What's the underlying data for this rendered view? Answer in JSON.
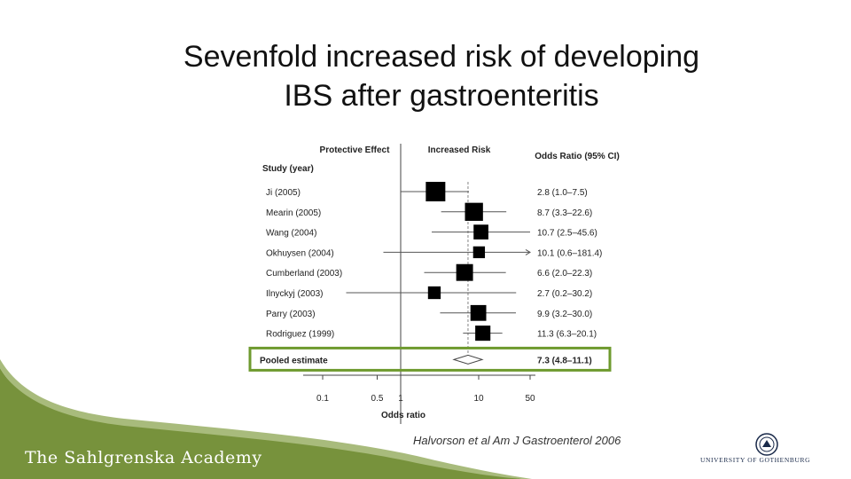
{
  "slide": {
    "title_line1": "Sevenfold increased risk of developing",
    "title_line2": "IBS after gastroenteritis",
    "citation": "Halvorson et al Am J Gastroenterol 2006",
    "academy": "The Sahlgrenska Academy",
    "university": "UNIVERSITY OF GOTHENBURG",
    "colors": {
      "green": "#77923c",
      "highlight": "#6e9a2e",
      "text": "#111111"
    }
  },
  "chart_data": {
    "type": "forest",
    "header_left": "Protective Effect",
    "header_mid": "Increased Risk",
    "header_right": "Odds Ratio (95% CI)",
    "study_header": "Study (year)",
    "xlabel": "Odds ratio",
    "xticks": [
      0.1,
      0.5,
      1,
      10,
      50
    ],
    "xtick_labels": [
      "0.1",
      "0.5",
      "1",
      "10",
      "50"
    ],
    "xlim": [
      0.05,
      60
    ],
    "reference_line": 1,
    "studies": [
      {
        "name": "Ji (2005)",
        "or": 2.8,
        "lo": 1.0,
        "hi": 7.5,
        "label": "2.8 (1.0–7.5)",
        "weight": 1.0
      },
      {
        "name": "Mearin (2005)",
        "or": 8.7,
        "lo": 3.3,
        "hi": 22.6,
        "label": "8.7 (3.3–22.6)",
        "weight": 0.88
      },
      {
        "name": "Wang (2004)",
        "or": 10.7,
        "lo": 2.5,
        "hi": 45.6,
        "label": "10.7 (2.5–45.6)",
        "weight": 0.62
      },
      {
        "name": "Okhuysen (2004)",
        "or": 10.1,
        "lo": 0.6,
        "hi": 181.4,
        "label": "10.1 (0.6–181.4)",
        "weight": 0.38
      },
      {
        "name": "Cumberland (2003)",
        "or": 6.6,
        "lo": 2.0,
        "hi": 22.3,
        "label": "6.6 (2.0–22.3)",
        "weight": 0.78
      },
      {
        "name": "Ilnyckyj (2003)",
        "or": 2.7,
        "lo": 0.2,
        "hi": 30.2,
        "label": "2.7 (0.2–30.2)",
        "weight": 0.45
      },
      {
        "name": "Parry (2003)",
        "or": 9.9,
        "lo": 3.2,
        "hi": 30.0,
        "label": "9.9 (3.2–30.0)",
        "weight": 0.7
      },
      {
        "name": "Rodriguez (1999)",
        "or": 11.3,
        "lo": 6.3,
        "hi": 20.1,
        "label": "11.3 (6.3–20.1)",
        "weight": 0.65
      }
    ],
    "pooled": {
      "name": "Pooled estimate",
      "or": 7.3,
      "lo": 4.8,
      "hi": 11.1,
      "label": "7.3 (4.8–11.1)"
    }
  }
}
